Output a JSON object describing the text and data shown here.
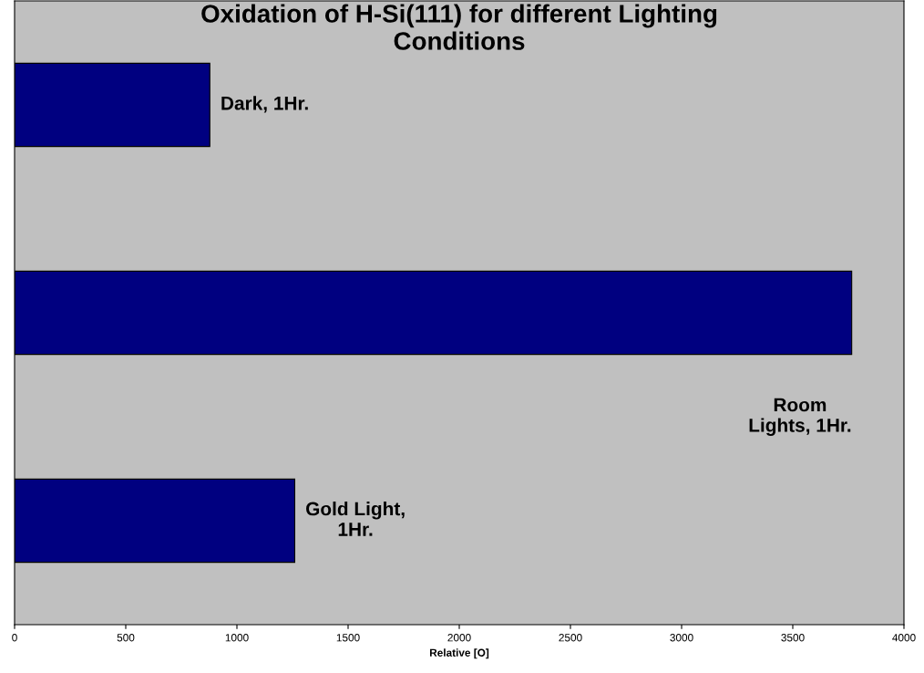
{
  "chart_data": {
    "type": "bar",
    "orientation": "horizontal",
    "title": "Oxidation of H-Si(111) for different Lighting\nConditions",
    "xlabel": "Relative [O]",
    "categories": [
      null,
      null,
      null
    ],
    "annotations": [
      "Dark, 1Hr.",
      "Room\nLights, 1Hr.",
      "Gold Light,\n1Hr."
    ],
    "values": [
      878,
      3765,
      1260
    ],
    "color": "#000080",
    "xlim": [
      0,
      4000
    ],
    "xticks": [
      0,
      500,
      1000,
      1500,
      2000,
      2500,
      3000,
      3500,
      4000
    ],
    "grid": false,
    "legend": false
  }
}
